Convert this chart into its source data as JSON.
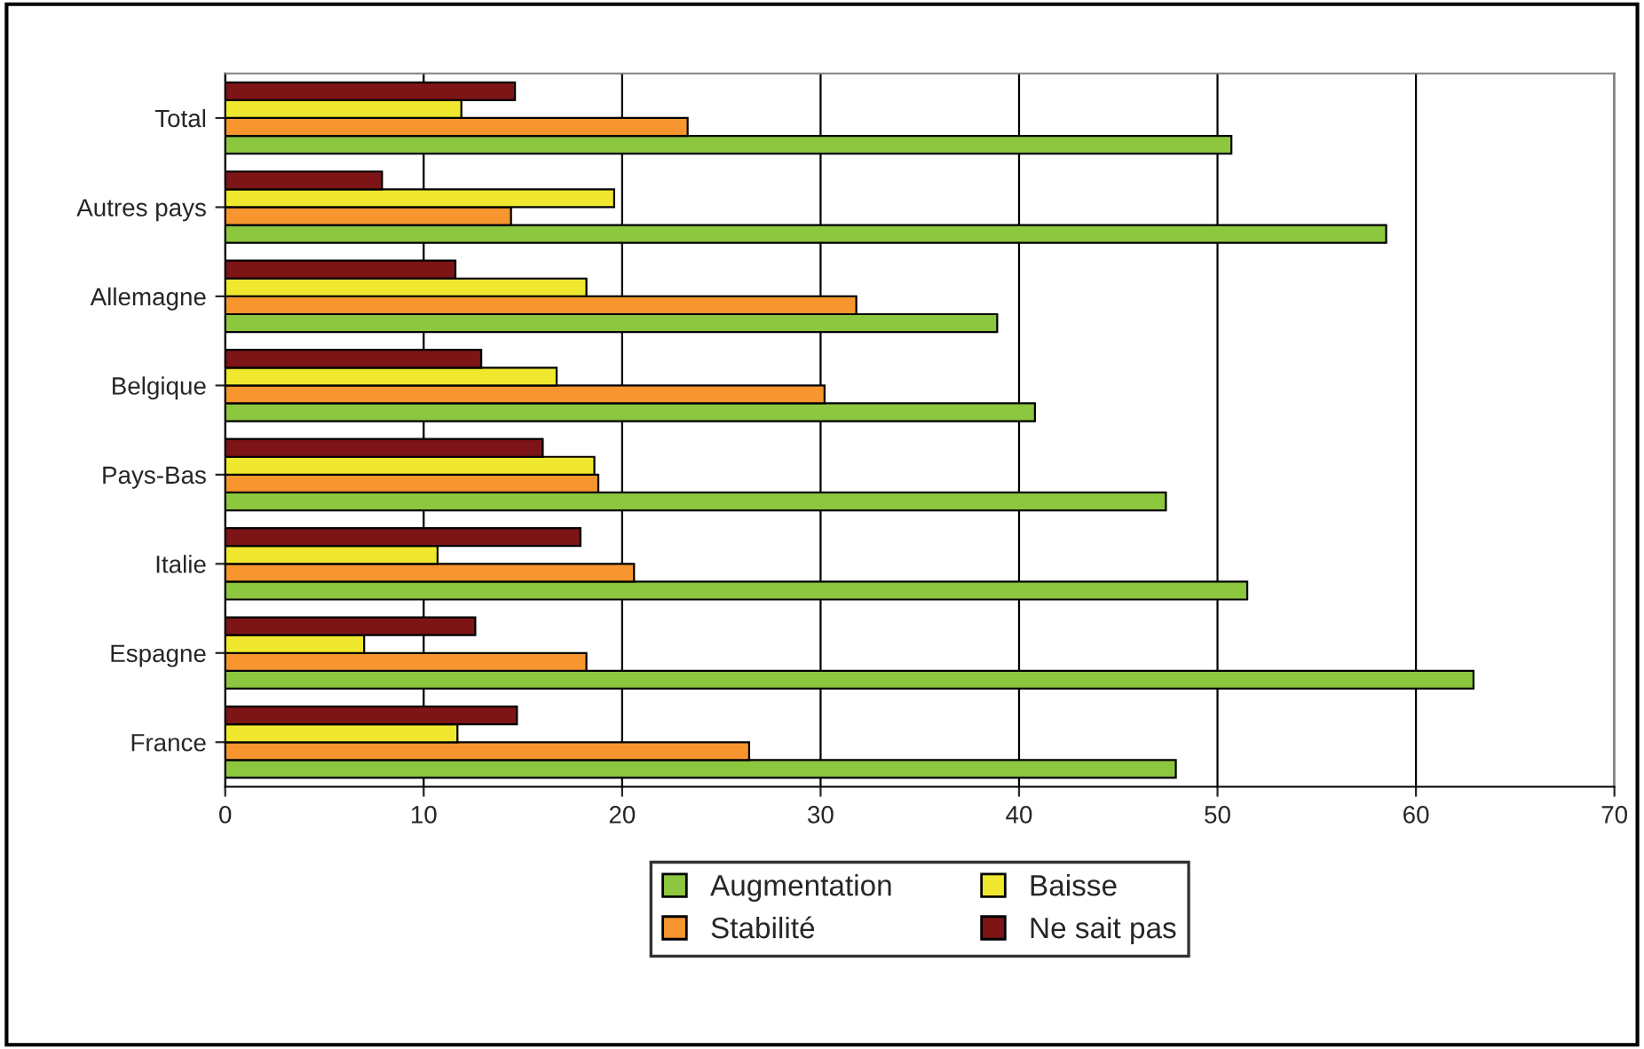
{
  "chart_data": {
    "type": "bar",
    "orientation": "horizontal",
    "categories": [
      "Total",
      "Autres pays",
      "Allemagne",
      "Belgique",
      "Pays-Bas",
      "Italie",
      "Espagne",
      "France"
    ],
    "series": [
      {
        "name": "Augmentation",
        "color": "#8dc63f",
        "values": [
          50.7,
          58.5,
          38.9,
          40.8,
          47.4,
          51.5,
          62.9,
          47.9
        ]
      },
      {
        "name": "Stabilité",
        "color": "#f7962f",
        "values": [
          23.3,
          14.4,
          31.8,
          30.2,
          18.8,
          20.6,
          18.2,
          26.4
        ]
      },
      {
        "name": "Baisse",
        "color": "#f0e82e",
        "values": [
          11.9,
          19.6,
          18.2,
          16.7,
          18.6,
          10.7,
          7.0,
          11.7
        ]
      },
      {
        "name": "Ne sait pas",
        "color": "#7d1416",
        "values": [
          14.6,
          7.9,
          11.6,
          12.9,
          16.0,
          17.9,
          12.6,
          14.7
        ]
      }
    ],
    "xlim": [
      0,
      70
    ],
    "xticks": [
      0,
      10,
      20,
      30,
      40,
      50,
      60,
      70
    ],
    "grid": "x",
    "legend": "bottom"
  }
}
